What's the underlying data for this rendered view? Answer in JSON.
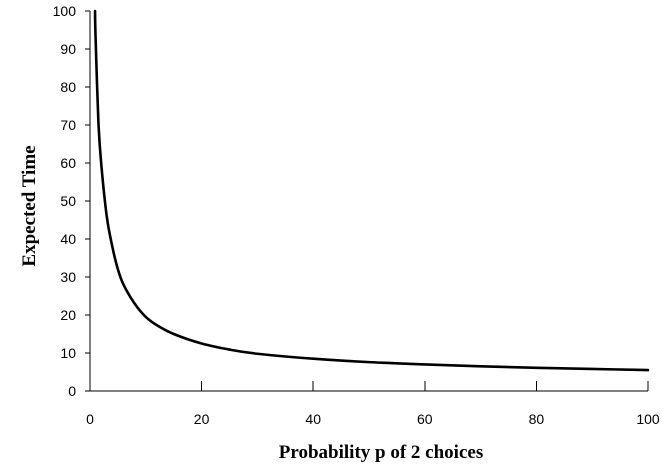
{
  "chart_data": {
    "type": "line",
    "title": "",
    "xlabel": "Probability p of 2 choices",
    "ylabel": "Expected Time",
    "xlim": [
      0,
      100
    ],
    "ylim": [
      0,
      100
    ],
    "x_ticks": [
      0,
      20,
      40,
      60,
      80,
      100
    ],
    "y_ticks": [
      0,
      10,
      20,
      30,
      40,
      50,
      60,
      70,
      80,
      90,
      100
    ],
    "grid": false,
    "legend": "none",
    "series": [
      {
        "color": "#000000",
        "x": [
          0.9,
          1,
          1.5,
          2,
          3,
          4,
          5,
          6,
          8,
          10,
          12,
          15,
          20,
          25,
          30,
          40,
          50,
          60,
          70,
          80,
          90,
          100
        ],
        "y": [
          100,
          93,
          71,
          60,
          46,
          38,
          32,
          28,
          23,
          19.5,
          17.3,
          15,
          12.5,
          10.9,
          9.8,
          8.5,
          7.6,
          7,
          6.5,
          6.1,
          5.8,
          5.5
        ]
      }
    ]
  }
}
